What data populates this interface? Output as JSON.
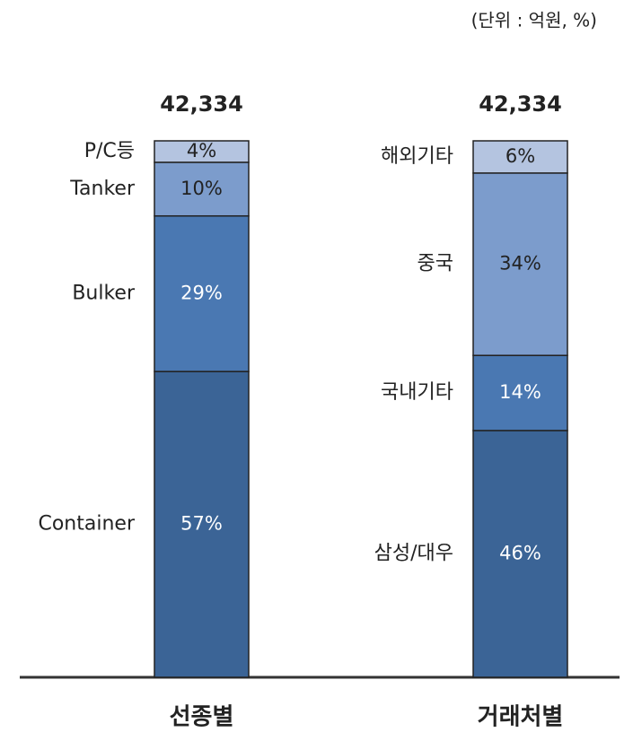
{
  "chart_data": {
    "type": "stacked_bar",
    "note": "(단위 : 억원, %)",
    "bars": [
      {
        "category": "선종별",
        "total": 42334,
        "total_label": "42,334",
        "segments": [
          {
            "name": "Container",
            "value": 57,
            "value_label": "57%",
            "color": "#3b6496"
          },
          {
            "name": "Bulker",
            "value": 29,
            "value_label": "29%",
            "color": "#4a78b2"
          },
          {
            "name": "Tanker",
            "value": 10,
            "value_label": "10%",
            "color": "#7c9ccc"
          },
          {
            "name": "P/C등",
            "value": 4,
            "value_label": "4%",
            "color": "#b4c4e0"
          }
        ]
      },
      {
        "category": "거래처별",
        "total": 42334,
        "total_label": "42,334",
        "segments": [
          {
            "name": "삼성/대우",
            "value": 46,
            "value_label": "46%",
            "color": "#3b6496"
          },
          {
            "name": "국내기타",
            "value": 14,
            "value_label": "14%",
            "color": "#4a78b2"
          },
          {
            "name": "중국",
            "value": 34,
            "value_label": "34%",
            "color": "#7c9ccc"
          },
          {
            "name": "해외기타",
            "value": 6,
            "value_label": "6%",
            "color": "#b4c4e0"
          }
        ]
      }
    ]
  }
}
